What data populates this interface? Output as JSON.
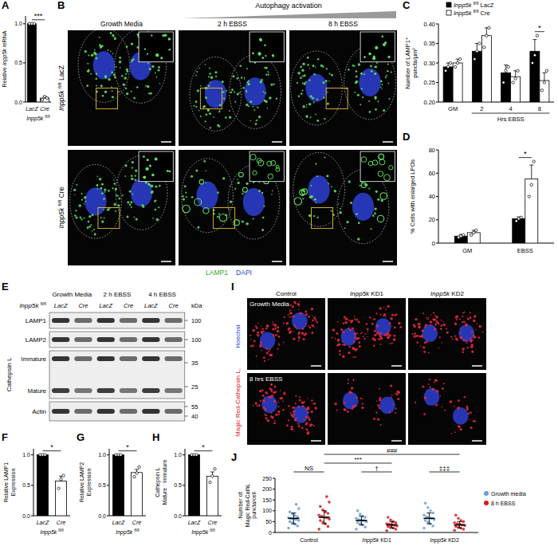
{
  "chart_data": [
    {
      "type": "bar",
      "title": "A",
      "ylabel": "Relative Inpp5k mRNA",
      "categories": [
        "LacZ",
        "Cre"
      ],
      "group_label": "Inpp5k fl/fl",
      "values": [
        1.0,
        0.05
      ],
      "error": [
        0,
        0.015
      ],
      "points": [
        [
          1.0,
          1.0,
          1.0
        ],
        [
          0.03,
          0.07,
          0.05
        ]
      ],
      "colors": [
        "#000000",
        "#ffffff"
      ],
      "ylim": [
        0,
        1.1
      ],
      "yticks": [
        {
          "value": 0,
          "label": "0.0"
        },
        {
          "value": 0.5,
          "label": "0.5"
        },
        {
          "value": 1,
          "label": "1.0"
        }
      ],
      "annotations": [
        "***"
      ]
    },
    {
      "type": "bar",
      "title": "C",
      "ylabel": [
        "Number of LAMP1⁺",
        "puncta/µm²"
      ],
      "categories": [
        "GM",
        "2",
        "4",
        "8"
      ],
      "xlabel": "Hrs EBSS",
      "legend": "top",
      "series": [
        {
          "name": "Inpp5k fl/fl LacZ",
          "color": "#000000",
          "values": [
            0.29,
            0.33,
            0.275,
            0.33
          ],
          "error": [
            0.01,
            0.02,
            0.02,
            0.03
          ],
          "points": [
            [
              0.28,
              0.29,
              0.3
            ],
            [
              0.31,
              0.33,
              0.35
            ],
            [
              0.25,
              0.28,
              0.29
            ],
            [
              0.3,
              0.32,
              0.37
            ]
          ]
        },
        {
          "name": "Inpp5k fl/fl Cre",
          "color": "#ffffff",
          "values": [
            0.3,
            0.37,
            0.265,
            0.255
          ],
          "error": [
            0.01,
            0.02,
            0.015,
            0.02
          ],
          "points": [
            [
              0.29,
              0.3,
              0.31
            ],
            [
              0.34,
              0.37,
              0.39
            ],
            [
              0.25,
              0.26,
              0.28
            ],
            [
              0.23,
              0.25,
              0.28
            ]
          ]
        }
      ],
      "ylim": [
        0.2,
        0.4
      ],
      "yticks": [
        {
          "value": 0.2,
          "label": "0.20"
        },
        {
          "value": 0.25,
          "label": "0.25"
        },
        {
          "value": 0.3,
          "label": "0.30"
        },
        {
          "value": 0.35,
          "label": "0.35"
        },
        {
          "value": 0.4,
          "label": "0.40"
        }
      ],
      "annotations": [
        "*"
      ]
    },
    {
      "type": "bar",
      "title": "D",
      "ylabel": "% Cells with enlarged LPOs",
      "categories": [
        "GM",
        "EBSS"
      ],
      "series": [
        {
          "name": "Inpp5k fl/fl LacZ",
          "color": "#000000",
          "values": [
            6,
            21
          ],
          "error": [
            1.5,
            1.5
          ],
          "points": [
            [
              5,
              6,
              7
            ],
            [
              19,
              21,
              22
            ]
          ]
        },
        {
          "name": "Inpp5k fl/fl Cre",
          "color": "#ffffff",
          "values": [
            9,
            55
          ],
          "error": [
            2,
            12
          ],
          "points": [
            [
              7,
              9,
              11
            ],
            [
              40,
              50,
              70
            ]
          ]
        }
      ],
      "ylim": [
        0,
        80
      ],
      "yticks": [
        0,
        20,
        40,
        60,
        80
      ],
      "annotations": [
        "*"
      ]
    },
    {
      "type": "bar",
      "title": "F",
      "ylabel": [
        "Relative LAMP1",
        "Expression"
      ],
      "categories": [
        "LacZ",
        "Cre"
      ],
      "group_label": "Inpp5k fl/fl",
      "values": [
        1.0,
        0.57
      ],
      "error": [
        0,
        0.08
      ],
      "points": [
        [
          1.0,
          1.0,
          1.0
        ],
        [
          0.45,
          0.6,
          0.66
        ]
      ],
      "colors": [
        "#000000",
        "#ffffff"
      ],
      "ylim": [
        0,
        1.1
      ],
      "yticks": [
        {
          "value": 0,
          "label": "0.0"
        },
        {
          "value": 0.5,
          "label": "0.5"
        },
        {
          "value": 1,
          "label": "1.0"
        }
      ],
      "annotations": [
        "*"
      ]
    },
    {
      "type": "bar",
      "title": "G",
      "ylabel": [
        "Relative LAMP2",
        "Expression"
      ],
      "categories": [
        "LacZ",
        "Cre"
      ],
      "group_label": "Inpp5k fl/fl",
      "values": [
        1.0,
        0.71
      ],
      "error": [
        0,
        0.05
      ],
      "points": [
        [
          1.0,
          1.0,
          1.0
        ],
        [
          0.64,
          0.7,
          0.8
        ]
      ],
      "colors": [
        "#000000",
        "#ffffff"
      ],
      "ylim": [
        0,
        1.1
      ],
      "yticks": [
        {
          "value": 0,
          "label": "0.0"
        },
        {
          "value": 0.5,
          "label": "0.5"
        },
        {
          "value": 1,
          "label": "1.0"
        }
      ],
      "annotations": [
        "*"
      ]
    },
    {
      "type": "bar",
      "title": "H",
      "ylabel": [
        "Cathepsin L",
        "Mature : Immature"
      ],
      "categories": [
        "LacZ",
        "Cre"
      ],
      "group_label": "Inpp5k fl/fl",
      "values": [
        1.0,
        0.65
      ],
      "error": [
        0,
        0.07
      ],
      "points": [
        [
          1.0,
          1.0,
          1.0
        ],
        [
          0.55,
          0.65,
          0.77
        ]
      ],
      "colors": [
        "#000000",
        "#ffffff"
      ],
      "ylim": [
        0,
        1.1
      ],
      "yticks": [
        {
          "value": 0,
          "label": "0.0"
        },
        {
          "value": 0.5,
          "label": "0.5"
        },
        {
          "value": 1,
          "label": "1.0"
        }
      ],
      "annotations": [
        "*"
      ]
    },
    {
      "type": "dot",
      "title": "J",
      "ylabel": [
        "Number of",
        "Magic Red-CathL",
        "puncta/cell"
      ],
      "categories": [
        "Control",
        "Inpp5k KD1",
        "Inpp5k KD2"
      ],
      "legend": "right",
      "series": [
        {
          "name": "Growth media",
          "color": "#6a9fd8",
          "values": [
            65,
            55,
            65
          ],
          "error": [
            25,
            20,
            25
          ],
          "points": [
            [
              20,
              30,
              38,
              45,
              50,
              55,
              60,
              62,
              65,
              68,
              72,
              78,
              85,
              95,
              110,
              130
            ],
            [
              15,
              25,
              35,
              40,
              45,
              50,
              55,
              58,
              60,
              65,
              70,
              75,
              85,
              100
            ],
            [
              20,
              30,
              40,
              48,
              55,
              60,
              65,
              68,
              72,
              80,
              90,
              100,
              115,
              135
            ]
          ]
        },
        {
          "name": "8 h EBSS",
          "color": "#d7191c",
          "values": [
            70,
            35,
            35
          ],
          "error": [
            30,
            15,
            15
          ],
          "points": [
            [
              15,
              28,
              40,
              48,
              55,
              62,
              68,
              70,
              75,
              80,
              88,
              95,
              105,
              120,
              140,
              165
            ],
            [
              8,
              15,
              20,
              25,
              28,
              30,
              33,
              35,
              38,
              40,
              45,
              50,
              58,
              70
            ],
            [
              10,
              15,
              20,
              25,
              28,
              32,
              35,
              38,
              40,
              45,
              50,
              55,
              65,
              80
            ]
          ]
        }
      ],
      "ylim": [
        0,
        250
      ],
      "yticks": [
        0,
        50,
        100,
        150,
        200,
        250
      ],
      "annotations": [
        "NS",
        "***",
        "###",
        "†",
        "‡‡‡"
      ]
    }
  ],
  "panels": {
    "B": {
      "title": "B",
      "header": "Autophagy activation",
      "columns": [
        "Growth Media",
        "2 h EBSS",
        "8 h EBSS"
      ],
      "rows": [
        "Inpp5k fl/fl LacZ",
        "Inpp5k fl/fl Cre"
      ],
      "stain": [
        "LAMP1",
        "DAPI"
      ]
    },
    "E": {
      "title": "E",
      "columns": [
        "Growth Media",
        "2 h EBSS",
        "4 h EBSS"
      ],
      "genotype": "Inpp5k fl/fl",
      "lanes": [
        "LacZ",
        "Cre",
        "LacZ",
        "Cre",
        "LacZ",
        "Cre"
      ],
      "kda_label": "kDa",
      "rows": [
        {
          "label": "LAMP1",
          "kda": [
            "100"
          ]
        },
        {
          "label": "LAMP2",
          "kda": [
            "100"
          ]
        },
        {
          "label": "Cathepsin L",
          "sub": [
            "Immature",
            "Mature"
          ],
          "kda": [
            "35",
            "25"
          ]
        },
        {
          "label": "Actin",
          "kda": [
            "55",
            "40"
          ]
        }
      ]
    },
    "I": {
      "title": "I",
      "columns": [
        "Control",
        "Inpp5k KD1",
        "Inpp5k KD2"
      ],
      "rows": [
        "Growth Media",
        "8 hrs EBSS"
      ],
      "stain": [
        "Magic Red-Cathepsin L,",
        "Hoechst"
      ]
    }
  }
}
